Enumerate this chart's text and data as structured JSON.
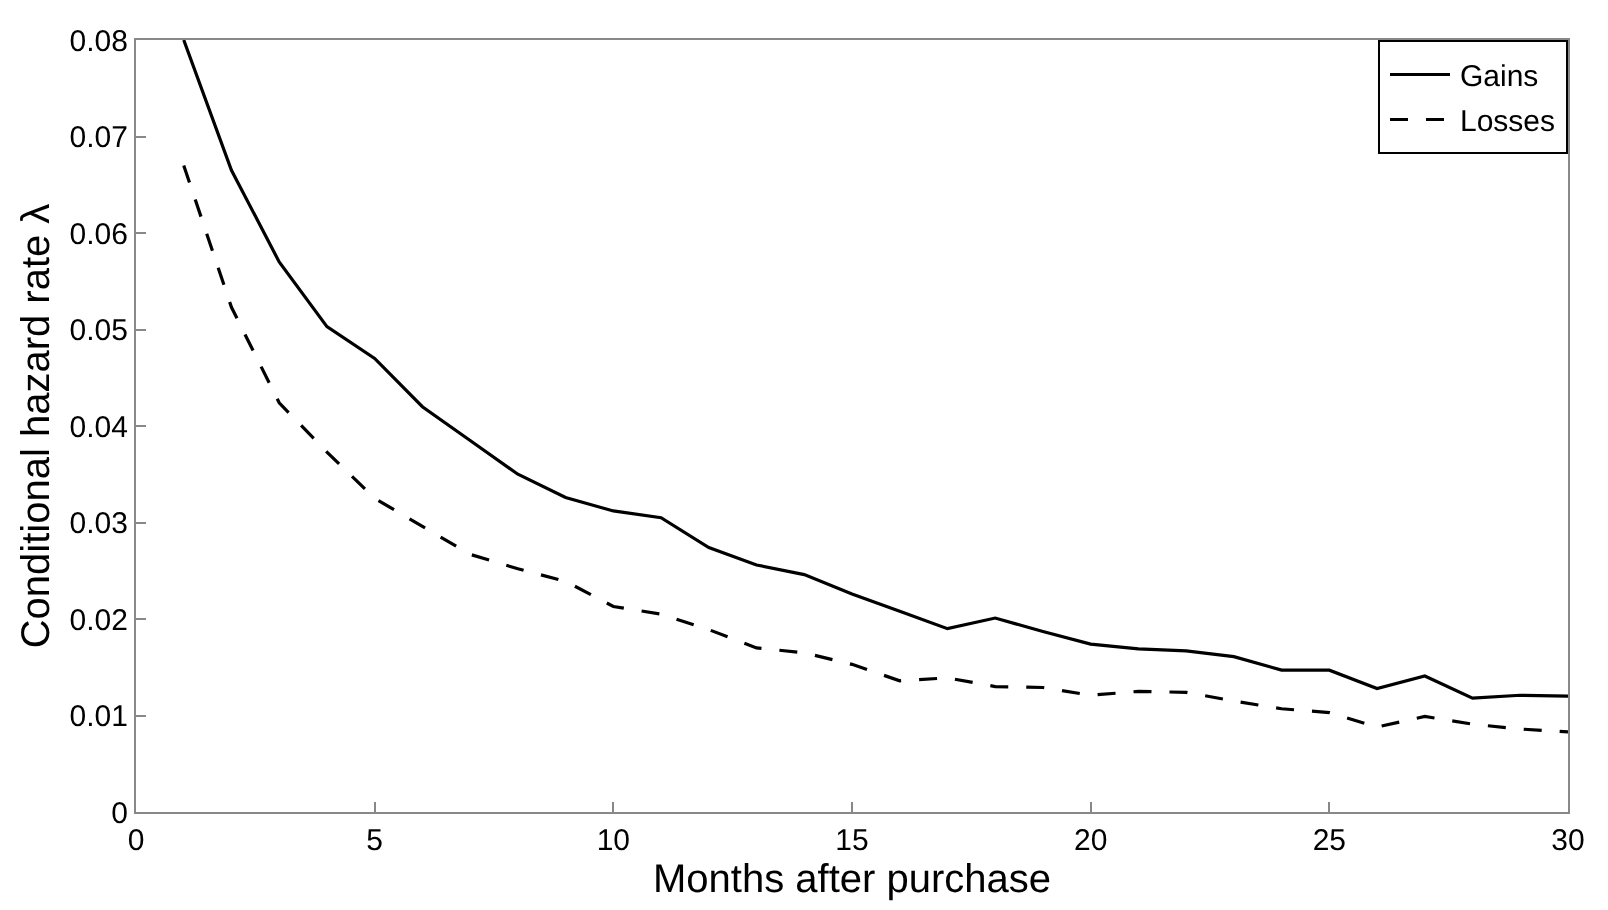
{
  "chart_data": {
    "type": "line",
    "xlabel": "Months after purchase",
    "ylabel": "Conditional hazard rate λ",
    "x": [
      1,
      2,
      3,
      4,
      5,
      6,
      7,
      8,
      9,
      10,
      11,
      12,
      13,
      14,
      15,
      16,
      17,
      18,
      19,
      20,
      21,
      22,
      23,
      24,
      25,
      26,
      27,
      28,
      29,
      30
    ],
    "series": [
      {
        "name": "Gains",
        "color": "#000000",
        "line_style": "solid",
        "values": [
          0.08,
          0.0665,
          0.057,
          0.0503,
          0.047,
          0.042,
          0.0385,
          0.035,
          0.0326,
          0.0312,
          0.0305,
          0.0274,
          0.0256,
          0.0246,
          0.0226,
          0.0208,
          0.019,
          0.0201,
          0.0187,
          0.0174,
          0.0169,
          0.0167,
          0.0161,
          0.0147,
          0.0147,
          0.0128,
          0.0141,
          0.0118,
          0.0121,
          0.012
        ]
      },
      {
        "name": "Losses",
        "color": "#000000",
        "line_style": "dashed",
        "values": [
          0.067,
          0.0523,
          0.0424,
          0.0373,
          0.0325,
          0.0296,
          0.0267,
          0.0252,
          0.0239,
          0.0213,
          0.0205,
          0.0189,
          0.017,
          0.0165,
          0.0153,
          0.0136,
          0.0139,
          0.013,
          0.0129,
          0.0121,
          0.0125,
          0.0124,
          0.0115,
          0.0107,
          0.0103,
          0.0088,
          0.0099,
          0.0091,
          0.0086,
          0.0083
        ]
      }
    ],
    "xlim": [
      0,
      30
    ],
    "xticks": [
      0,
      5,
      10,
      15,
      20,
      25,
      30
    ],
    "ylim": [
      0,
      0.08
    ],
    "yticks": [
      0,
      0.01,
      0.02,
      0.03,
      0.04,
      0.05,
      0.06,
      0.07,
      0.08
    ],
    "grid": false,
    "legend": "top right",
    "marker": "none"
  }
}
